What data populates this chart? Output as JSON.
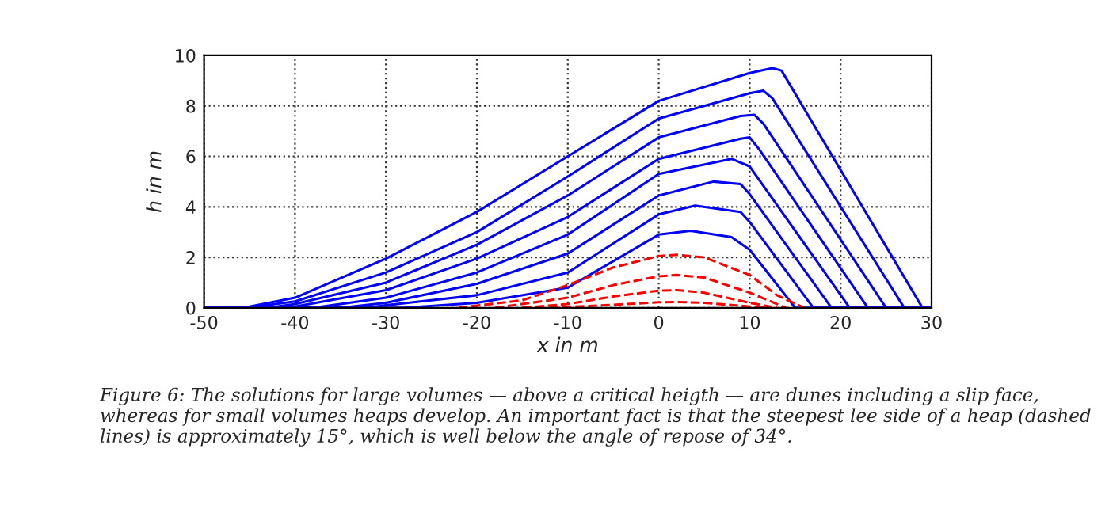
{
  "chart_data": {
    "type": "line",
    "xlabel": "x in m",
    "ylabel": "h in m",
    "xlim": [
      -50,
      30
    ],
    "ylim": [
      0,
      10
    ],
    "xticks": [
      -50,
      -40,
      -30,
      -20,
      -10,
      0,
      10,
      20,
      30
    ],
    "yticks": [
      0,
      2,
      4,
      6,
      8,
      10
    ],
    "grid": true,
    "marker": "none",
    "series": [
      {
        "color": "#0000ff",
        "line_style": "solid",
        "x": [
          -50,
          -45,
          -40,
          -30,
          -20,
          -10,
          0,
          10,
          12.5,
          13.5,
          29,
          30
        ],
        "values": [
          0,
          0.05,
          0.4,
          1.95,
          3.8,
          6.0,
          8.2,
          9.3,
          9.5,
          9.4,
          0,
          0
        ]
      },
      {
        "color": "#0000ff",
        "line_style": "solid",
        "x": [
          -50,
          -45,
          -40,
          -30,
          -20,
          -10,
          0,
          10,
          11.5,
          12.5,
          27,
          30
        ],
        "values": [
          0,
          0.02,
          0.25,
          1.4,
          3.0,
          5.2,
          7.5,
          8.5,
          8.6,
          8.3,
          0,
          0
        ]
      },
      {
        "color": "#0000ff",
        "line_style": "solid",
        "x": [
          -50,
          -42,
          -40,
          -30,
          -20,
          -10,
          0,
          9,
          10.5,
          11.5,
          25,
          30
        ],
        "values": [
          0,
          0.05,
          0.15,
          1.0,
          2.5,
          4.45,
          6.75,
          7.6,
          7.65,
          7.3,
          0,
          0
        ]
      },
      {
        "color": "#0000ff",
        "line_style": "solid",
        "x": [
          -50,
          -40,
          -30,
          -20,
          -10,
          0,
          9,
          10,
          11,
          23,
          30
        ],
        "values": [
          0,
          0.05,
          0.7,
          1.95,
          3.6,
          5.9,
          6.7,
          6.75,
          6.3,
          0,
          0
        ]
      },
      {
        "color": "#0000ff",
        "line_style": "solid",
        "x": [
          -50,
          -38,
          -30,
          -20,
          -10,
          0,
          8,
          10,
          21,
          30
        ],
        "values": [
          0,
          0,
          0.4,
          1.4,
          2.9,
          5.3,
          5.9,
          5.6,
          0,
          0
        ]
      },
      {
        "color": "#0000ff",
        "line_style": "solid",
        "x": [
          -50,
          -35,
          -30,
          -20,
          -10,
          0,
          6,
          9,
          10,
          19,
          30
        ],
        "values": [
          0,
          0,
          0.2,
          0.95,
          2.15,
          4.45,
          5.0,
          4.9,
          4.5,
          0,
          0
        ]
      },
      {
        "color": "#0000ff",
        "line_style": "solid",
        "x": [
          -50,
          -32,
          -30,
          -20,
          -10,
          0,
          4,
          9,
          10,
          17,
          30
        ],
        "values": [
          0,
          0,
          0.1,
          0.5,
          1.4,
          3.7,
          4.05,
          3.8,
          3.4,
          0,
          0
        ]
      },
      {
        "color": "#0000ff",
        "line_style": "solid",
        "x": [
          -50,
          -28,
          -20,
          -10,
          0,
          3.5,
          8,
          10,
          15,
          30
        ],
        "values": [
          0,
          0,
          0.2,
          0.8,
          2.9,
          3.05,
          2.8,
          2.3,
          0,
          0
        ]
      },
      {
        "color": "#ff0000",
        "line_style": "dashed",
        "x": [
          -22,
          -15,
          -10,
          -5,
          0,
          2,
          5,
          10,
          13,
          16
        ],
        "values": [
          0,
          0.3,
          0.9,
          1.6,
          2.05,
          2.1,
          2.0,
          1.3,
          0.5,
          0
        ]
      },
      {
        "color": "#ff0000",
        "line_style": "dashed",
        "x": [
          -18,
          -10,
          -5,
          0,
          2,
          5,
          10,
          14
        ],
        "values": [
          0,
          0.4,
          0.9,
          1.25,
          1.3,
          1.2,
          0.6,
          0
        ]
      },
      {
        "color": "#ff0000",
        "line_style": "dashed",
        "x": [
          -15,
          -10,
          -5,
          0,
          2,
          5,
          10,
          13
        ],
        "values": [
          0,
          0.15,
          0.45,
          0.68,
          0.7,
          0.6,
          0.2,
          0
        ]
      },
      {
        "color": "#ff0000",
        "line_style": "dashed",
        "x": [
          -12,
          -5,
          0,
          2,
          5,
          10,
          12
        ],
        "values": [
          0,
          0.12,
          0.22,
          0.23,
          0.2,
          0.05,
          0
        ]
      }
    ],
    "annotations": [
      "Figure 6: The solutions for large volumes — above a critical heigth — are dunes including a slip face, whereas for small volumes heaps develop. An important fact is that the steepest lee side of a heap (dashed lines) is approximately 15°, which is well below the angle of repose of 34°."
    ]
  }
}
